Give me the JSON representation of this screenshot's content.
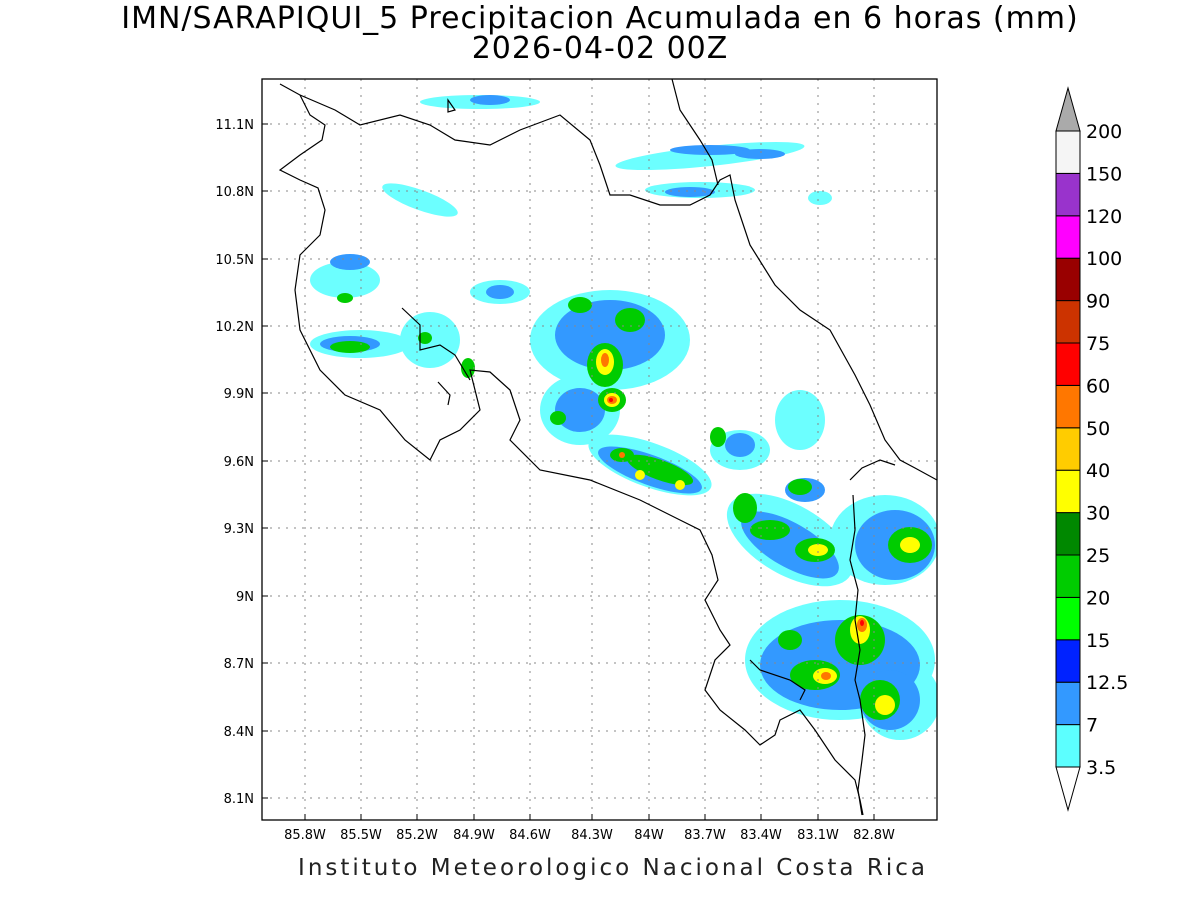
{
  "title_line1": "IMN/SARAPIQUI_5 Precipitacion Acumulada en 6 horas (mm)",
  "title_line2": "2026-04-02 00Z",
  "footer": "Instituto Meteorologico Nacional Costa Rica",
  "lon_labels": [
    "85.8W",
    "85.5W",
    "85.2W",
    "84.9W",
    "84.6W",
    "84.3W",
    "84W",
    "83.7W",
    "83.4W",
    "83.1W",
    "82.8W"
  ],
  "lat_labels": [
    "11.1N",
    "10.8N",
    "10.5N",
    "10.2N",
    "9.9N",
    "9.6N",
    "9.3N",
    "9N",
    "8.7N",
    "8.4N",
    "8.1N"
  ],
  "colorbar": {
    "labels": [
      "3.5",
      "7",
      "12.5",
      "15",
      "20",
      "25",
      "30",
      "40",
      "50",
      "60",
      "75",
      "90",
      "100",
      "120",
      "150",
      "200"
    ],
    "colors": [
      "#5cffff",
      "#3399ff",
      "#0022ff",
      "#00ff00",
      "#00cc00",
      "#008800",
      "#ffff00",
      "#ffcc00",
      "#ff7700",
      "#ff0000",
      "#cc3300",
      "#990000",
      "#ff00ff",
      "#9933cc",
      "#f5f5f5",
      "#aaaaaa"
    ]
  }
}
